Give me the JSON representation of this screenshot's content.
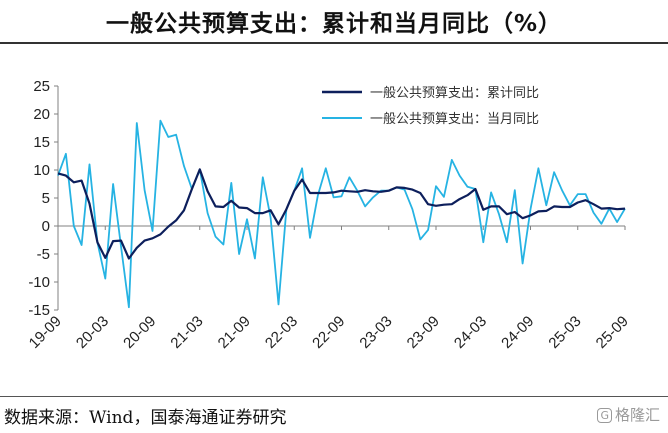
{
  "title": "一般公共预算支出：累计和当月同比（%）",
  "source": "数据来源：Wind，国泰海通证券研究",
  "watermark": "格隆汇",
  "watermark_icon": "g-logo-icon",
  "chart_data": {
    "type": "line",
    "title": "一般公共预算支出：累计和当月同比（%）",
    "xlabel": "",
    "ylabel": "",
    "ylim": [
      -15,
      25
    ],
    "yticks": [
      -15,
      -10,
      -5,
      0,
      5,
      10,
      15,
      20,
      25
    ],
    "legend_position": "top-right",
    "x_tick_labels": [
      "19-09",
      "20-03",
      "20-09",
      "21-03",
      "21-09",
      "22-03",
      "22-09",
      "23-03",
      "23-09",
      "24-03",
      "24-09",
      "25-03",
      "25-09"
    ],
    "x_start": "2019-09",
    "x_end": "2025-09",
    "series": [
      {
        "name": "一般公共预算支出：累计同比",
        "color": "#0d1f5c",
        "values": [
          9.4,
          9.0,
          7.8,
          8.1,
          4.0,
          -2.9,
          -5.7,
          -2.7,
          -2.6,
          -5.8,
          -3.9,
          -2.6,
          -2.2,
          -1.5,
          -0.1,
          1.0,
          2.8,
          6.6,
          10.1,
          6.2,
          3.5,
          3.4,
          4.5,
          3.3,
          3.2,
          2.3,
          2.3,
          2.8,
          0.3,
          3.0,
          6.3,
          8.3,
          5.9,
          5.9,
          5.9,
          6.0,
          6.3,
          6.2,
          6.1,
          6.4,
          6.2,
          6.1,
          6.3,
          6.9,
          6.8,
          6.5,
          5.9,
          3.9,
          3.6,
          3.8,
          3.9,
          4.8,
          5.5,
          6.6,
          2.9,
          3.5,
          3.5,
          2.1,
          2.5,
          1.4,
          1.9,
          2.6,
          2.7,
          3.5,
          3.4,
          3.4,
          4.2,
          4.6,
          3.9,
          3.1,
          3.2,
          3.0,
          3.1
        ]
      },
      {
        "name": "一般公共预算支出：当月同比",
        "color": "#26b3e3",
        "values": [
          9.0,
          12.9,
          0.0,
          -3.4,
          11.0,
          -2.9,
          -9.4,
          7.5,
          -3.6,
          -14.5,
          18.4,
          6.4,
          -0.9,
          18.8,
          15.9,
          16.3,
          10.7,
          6.6,
          10.1,
          2.3,
          -1.9,
          -3.3,
          7.7,
          -5.0,
          1.2,
          -5.8,
          8.7,
          1.5,
          -14.0,
          3.0,
          6.3,
          10.3,
          -2.1,
          5.5,
          10.3,
          5.1,
          5.3,
          8.7,
          6.3,
          3.5,
          5.1,
          6.3,
          6.3,
          6.9,
          6.5,
          3.0,
          -2.4,
          -0.7,
          7.1,
          5.2,
          11.8,
          9.0,
          7.0,
          6.6,
          -2.9,
          6.0,
          2.1,
          -2.9,
          6.4,
          -6.7,
          3.0,
          10.3,
          3.7,
          9.6,
          6.4,
          3.7,
          5.7,
          5.7,
          2.4,
          0.4,
          3.1,
          0.7,
          3.1
        ]
      }
    ]
  }
}
